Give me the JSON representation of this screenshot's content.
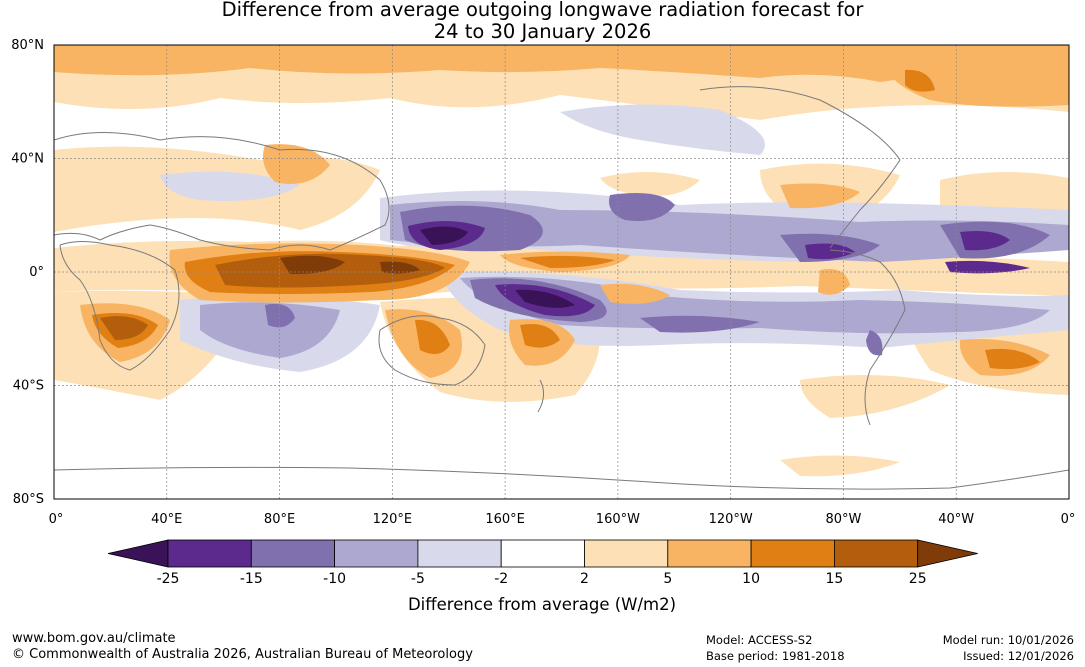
{
  "title": {
    "line1": "Difference from average outgoing longwave radiation forecast for",
    "line2": "24 to 30 January 2026"
  },
  "map": {
    "lat_labels": [
      "80°N",
      "40°N",
      "0°",
      "40°S",
      "80°S"
    ],
    "lon_labels": [
      "0°",
      "40°E",
      "80°E",
      "120°E",
      "160°E",
      "160°W",
      "120°W",
      "80°W",
      "40°W",
      "0°"
    ],
    "lat_values": [
      80,
      40,
      0,
      -40,
      -80
    ],
    "lon_values": [
      0,
      40,
      80,
      120,
      160,
      200,
      240,
      280,
      320,
      360
    ],
    "lat_range": [
      -80,
      80
    ],
    "lon_range": [
      0,
      360
    ]
  },
  "colorbar": {
    "label": "Difference from average (W/m2)",
    "ticks": [
      "-25",
      "-15",
      "-10",
      "-5",
      "-2",
      "2",
      "5",
      "10",
      "15",
      "25"
    ],
    "colors": [
      "#3a1258",
      "#5c2a8c",
      "#8070ae",
      "#ada8d0",
      "#d9d9ec",
      "#ffffff",
      "#fde0b5",
      "#f8b462",
      "#e07f14",
      "#b25e0c",
      "#7f3b08"
    ]
  },
  "footer": {
    "url": "www.bom.gov.au/climate",
    "copyright": "© Commonwealth of Australia 2026, Australian Bureau of Meteorology",
    "model": "Model: ACCESS-S2",
    "base_period": "Base period: 1981-2018",
    "model_run": "Model run: 10/01/2026",
    "issued": "Issued: 12/01/2026"
  },
  "colors": {
    "coast": "#7a7a7a",
    "grid": "#8a8a8a"
  }
}
